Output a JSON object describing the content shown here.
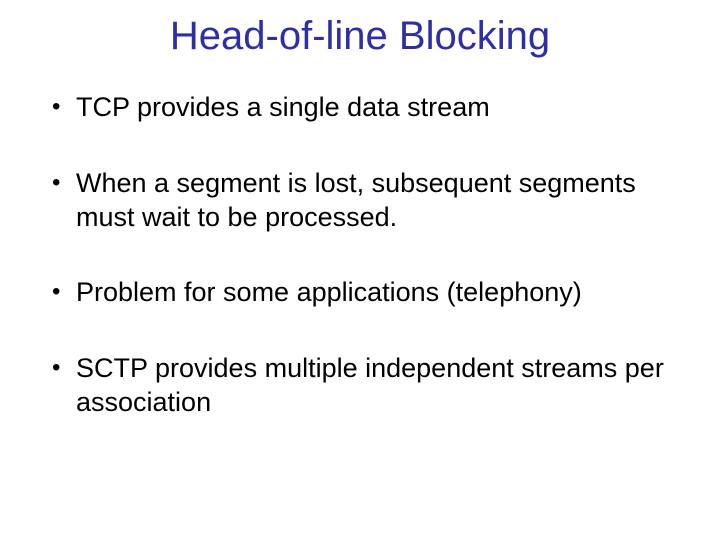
{
  "slide": {
    "title": "Head-of-line Blocking",
    "title_color": "#2e2ea8",
    "title_fontsize": 40,
    "body_color": "#000000",
    "body_fontsize": 27,
    "background_color": "#ffffff",
    "bullets": [
      "TCP provides a single data stream",
      "When a segment is lost, subsequent segments must wait to be processed.",
      "Problem for some applications (telephony)",
      "SCTP provides multiple independent streams per association"
    ]
  }
}
